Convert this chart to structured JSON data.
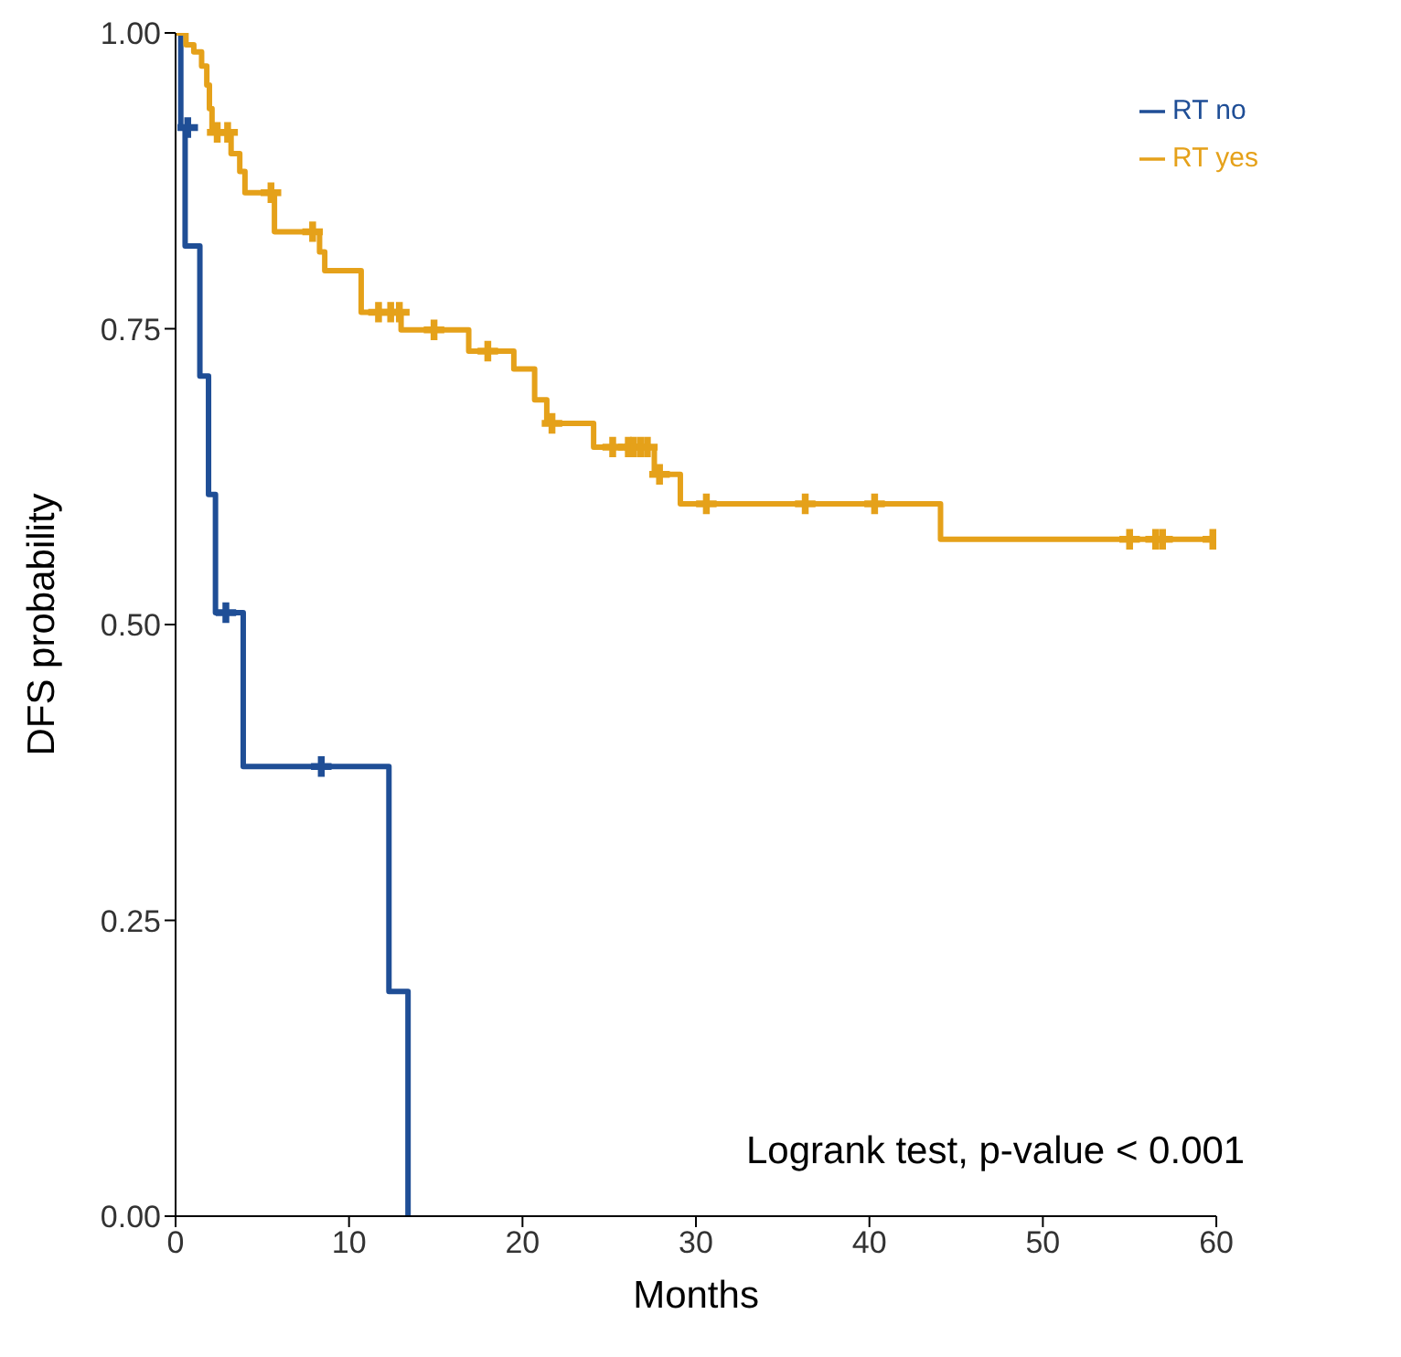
{
  "chart_data": {
    "type": "step",
    "xlabel": "Months",
    "ylabel": "DFS probability",
    "xlim": [
      0,
      60
    ],
    "xticks": [
      0,
      10,
      20,
      30,
      40,
      50,
      60
    ],
    "ylim": [
      0,
      1
    ],
    "yticks": [
      {
        "value": 0,
        "label": "0.00"
      },
      {
        "value": 0.25,
        "label": "0.25"
      },
      {
        "value": 0.5,
        "label": "0.50"
      },
      {
        "value": 0.75,
        "label": "0.75"
      },
      {
        "value": 1,
        "label": "1.00"
      }
    ],
    "series": [
      {
        "name": "RT no",
        "color": "#1f4e96",
        "x": [
          0,
          0.3,
          0.55,
          1.4,
          1.9,
          2.3,
          3.9,
          12.3,
          13.4
        ],
        "values": [
          1,
          0.92,
          0.82,
          0.71,
          0.61,
          0.51,
          0.38,
          0.19,
          0
        ]
      },
      {
        "name": "RT yes",
        "color": "#e5a11a",
        "x": [
          0,
          0.6,
          1.05,
          1.5,
          1.8,
          1.95,
          2.1,
          3.2,
          3.7,
          4.0,
          5.7,
          8.3,
          8.6,
          10.7,
          13.0,
          16.9,
          19.5,
          20.7,
          21.4,
          24.1,
          27.6,
          29.1,
          44.1,
          59.8
        ],
        "values": [
          1,
          0.99,
          0.984,
          0.972,
          0.956,
          0.936,
          0.916,
          0.898,
          0.883,
          0.865,
          0.832,
          0.815,
          0.799,
          0.764,
          0.749,
          0.731,
          0.716,
          0.69,
          0.67,
          0.65,
          0.627,
          0.602,
          0.572,
          0.572
        ]
      },
      {
        "type": "scatter",
        "marker": "cross",
        "color": "#1f4e96",
        "x": [
          0.7,
          2.9,
          8.4
        ],
        "values": [
          0.92,
          0.51,
          0.38
        ]
      },
      {
        "type": "scatter",
        "marker": "cross",
        "color": "#e5a11a",
        "x": [
          2.4,
          3.0,
          5.5,
          7.9,
          11.7,
          12.4,
          12.9,
          14.9,
          18.0,
          21.7,
          25.2,
          26.1,
          26.4,
          26.8,
          27.2,
          27.9,
          30.6,
          36.3,
          40.3,
          55.0,
          56.5,
          56.9,
          59.8
        ],
        "values": [
          0.916,
          0.916,
          0.865,
          0.832,
          0.764,
          0.764,
          0.764,
          0.749,
          0.731,
          0.67,
          0.65,
          0.65,
          0.65,
          0.65,
          0.65,
          0.627,
          0.602,
          0.602,
          0.602,
          0.572,
          0.572,
          0.572,
          0.572
        ]
      }
    ],
    "legend": "top right",
    "annotations": [
      "Logrank test, p-value < 0.001"
    ]
  }
}
